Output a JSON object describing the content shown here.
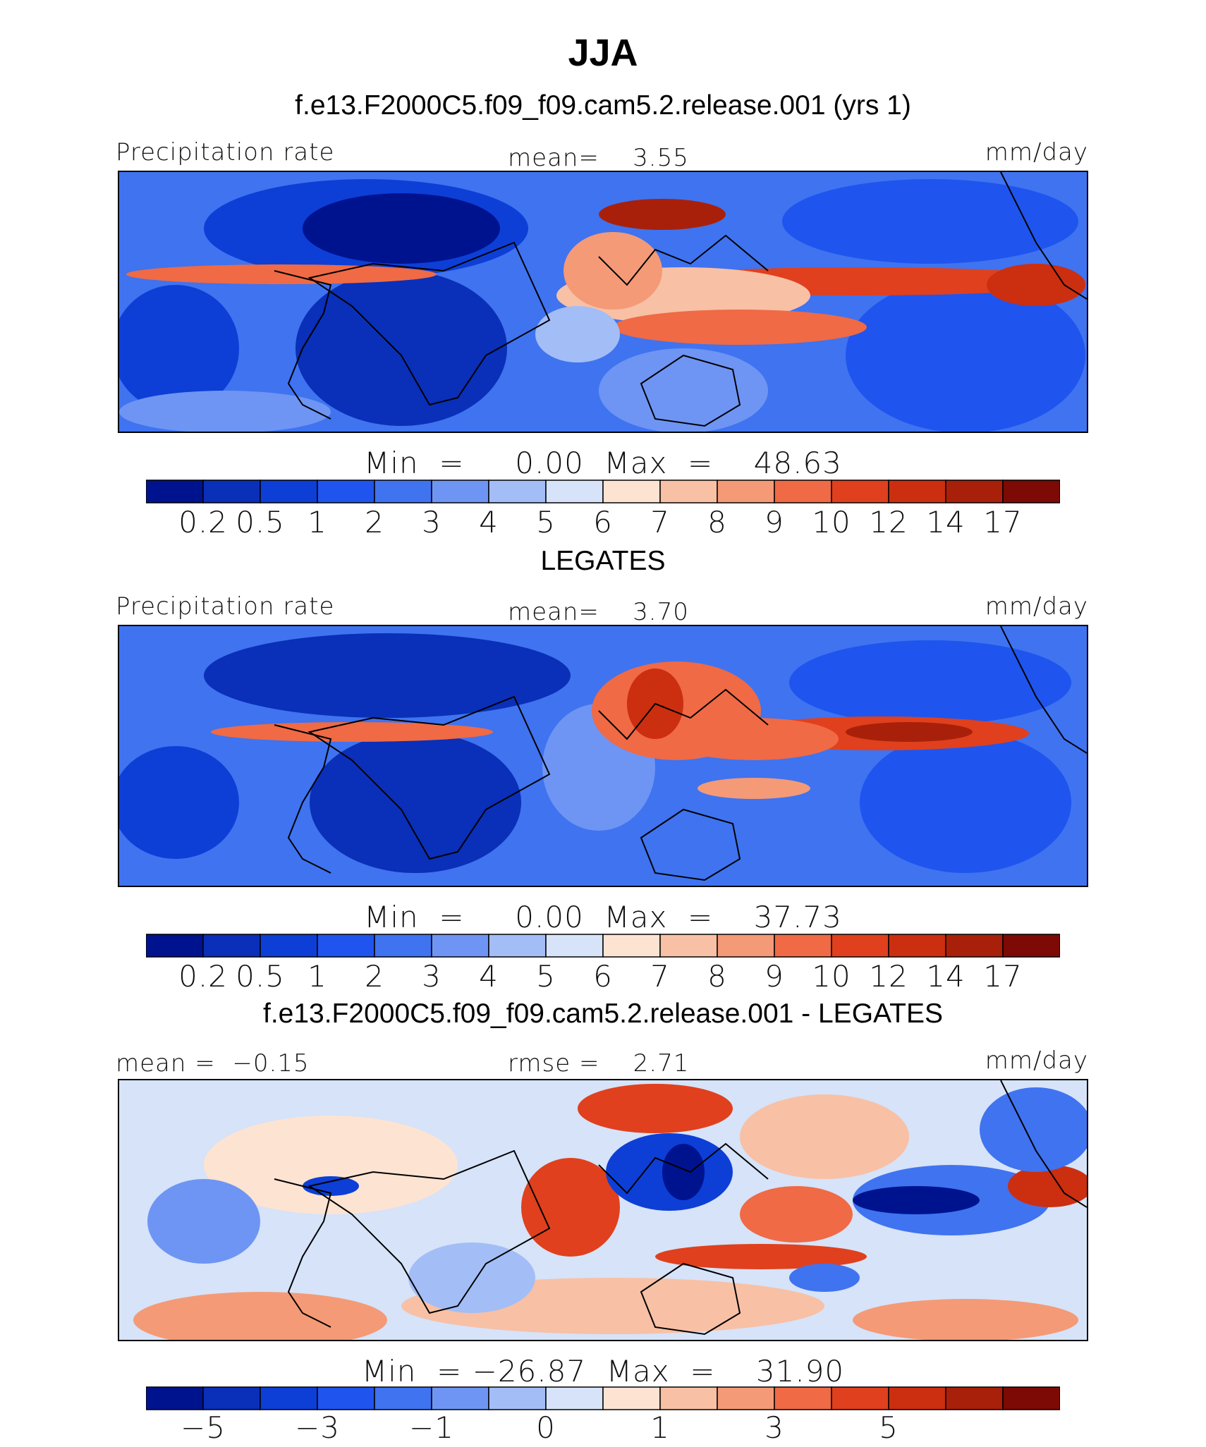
{
  "title": "JJA",
  "panels": [
    {
      "heading": "f.e13.F2000C5.f09_f09.cam5.2.release.001 (yrs 1)",
      "left_label": "Precipitation rate",
      "center_label": "mean=    3.55",
      "units": "mm/day",
      "minmax": "Min  =     0.00  Max  =    48.63",
      "colorbar_labels": [
        "0.2",
        "0.5",
        "1",
        "2",
        "3",
        "4",
        "5",
        "6",
        "7",
        "8",
        "9",
        "10",
        "12",
        "14",
        "17"
      ]
    },
    {
      "heading": "LEGATES",
      "left_label": "Precipitation rate",
      "center_label": "mean=    3.70",
      "units": "mm/day",
      "minmax": "Min  =     0.00  Max  =    37.73",
      "colorbar_labels": [
        "0.2",
        "0.5",
        "1",
        "2",
        "3",
        "4",
        "5",
        "6",
        "7",
        "8",
        "9",
        "10",
        "12",
        "14",
        "17"
      ]
    },
    {
      "heading": "f.e13.F2000C5.f09_f09.cam5.2.release.001 - LEGATES",
      "left_label": "mean =  −0.15",
      "center_label": "rmse =    2.71",
      "units": "mm/day",
      "minmax": "Min  = −26.87  Max  =    31.90",
      "colorbar_labels": [
        "−5",
        "−3",
        "−1",
        "0",
        "1",
        "3",
        "5"
      ]
    }
  ],
  "colors": {
    "precip_scale": [
      "#00138f",
      "#0a2fb8",
      "#0d3fd6",
      "#1f55ee",
      "#3f73f0",
      "#6e95f3",
      "#a3bdf6",
      "#d6e3f8",
      "#fde3d2",
      "#f8c0a5",
      "#f49a77",
      "#ef6a45",
      "#e0401d",
      "#cc2e10",
      "#a9200a",
      "#7d0a05"
    ],
    "diff_scale": [
      "#00138f",
      "#0a2fb8",
      "#0d3fd6",
      "#1f55ee",
      "#3f73f0",
      "#6e95f3",
      "#a3bdf6",
      "#d6e3f8",
      "#fde3d2",
      "#f8c0a5",
      "#f49a77",
      "#ef6a45",
      "#e0401d",
      "#cc2e10",
      "#a9200a",
      "#7d0a05"
    ]
  }
}
